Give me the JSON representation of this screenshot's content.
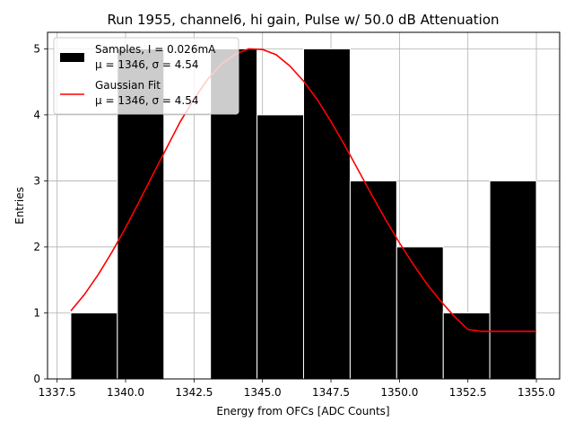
{
  "chart_data": {
    "type": "bar",
    "title": "Run 1955, channel6, hi gain, Pulse w/ 50.0 dB Attenuation",
    "xlabel": "Energy from OFCs [ADC Counts]",
    "ylabel": "Entries",
    "xlim": [
      1337.15,
      1355.85
    ],
    "ylim": [
      0,
      5.25
    ],
    "grid": true,
    "legend_position": "top-left",
    "x_ticks": [
      "1337.5",
      "1340.0",
      "1342.5",
      "1345.0",
      "1347.5",
      "1350.0",
      "1352.5",
      "1355.0"
    ],
    "y_ticks": [
      "0",
      "1",
      "2",
      "3",
      "4",
      "5"
    ],
    "histogram": {
      "name": "Samples, I = 0.026mA",
      "stats_label": "μ = 1346, σ = 4.54",
      "color": "#000000",
      "bin_edges": [
        1338.0,
        1339.7,
        1341.4,
        1343.1,
        1344.8,
        1346.5,
        1348.2,
        1349.9,
        1351.6,
        1353.3,
        1355.0
      ],
      "counts": [
        1,
        5,
        0,
        5,
        4,
        5,
        3,
        2,
        1,
        3
      ]
    },
    "series": [
      {
        "name": "Gaussian Fit",
        "stats_label": "μ = 1346, σ = 4.54",
        "color": "#ff0000",
        "x": [
          1338.0,
          1338.5,
          1339.0,
          1339.5,
          1340.0,
          1340.5,
          1341.0,
          1341.5,
          1342.0,
          1342.5,
          1343.0,
          1343.5,
          1344.0,
          1344.5,
          1345.0,
          1345.5,
          1346.0,
          1346.5,
          1347.0,
          1347.5,
          1348.0,
          1348.5,
          1349.0,
          1349.5,
          1350.0,
          1350.5,
          1351.0,
          1351.5,
          1352.0,
          1352.5,
          1353.0,
          1353.5,
          1354.0,
          1354.5,
          1355.0
        ],
        "y": [
          1.03,
          1.28,
          1.58,
          1.92,
          2.29,
          2.69,
          3.1,
          3.5,
          3.9,
          4.24,
          4.54,
          4.77,
          4.92,
          5.0,
          4.99,
          4.91,
          4.74,
          4.51,
          4.23,
          3.9,
          3.54,
          3.16,
          2.78,
          2.41,
          2.06,
          1.74,
          1.44,
          1.18,
          0.95,
          0.75,
          0.72,
          0.72,
          0.72,
          0.72,
          0.72
        ]
      }
    ]
  }
}
